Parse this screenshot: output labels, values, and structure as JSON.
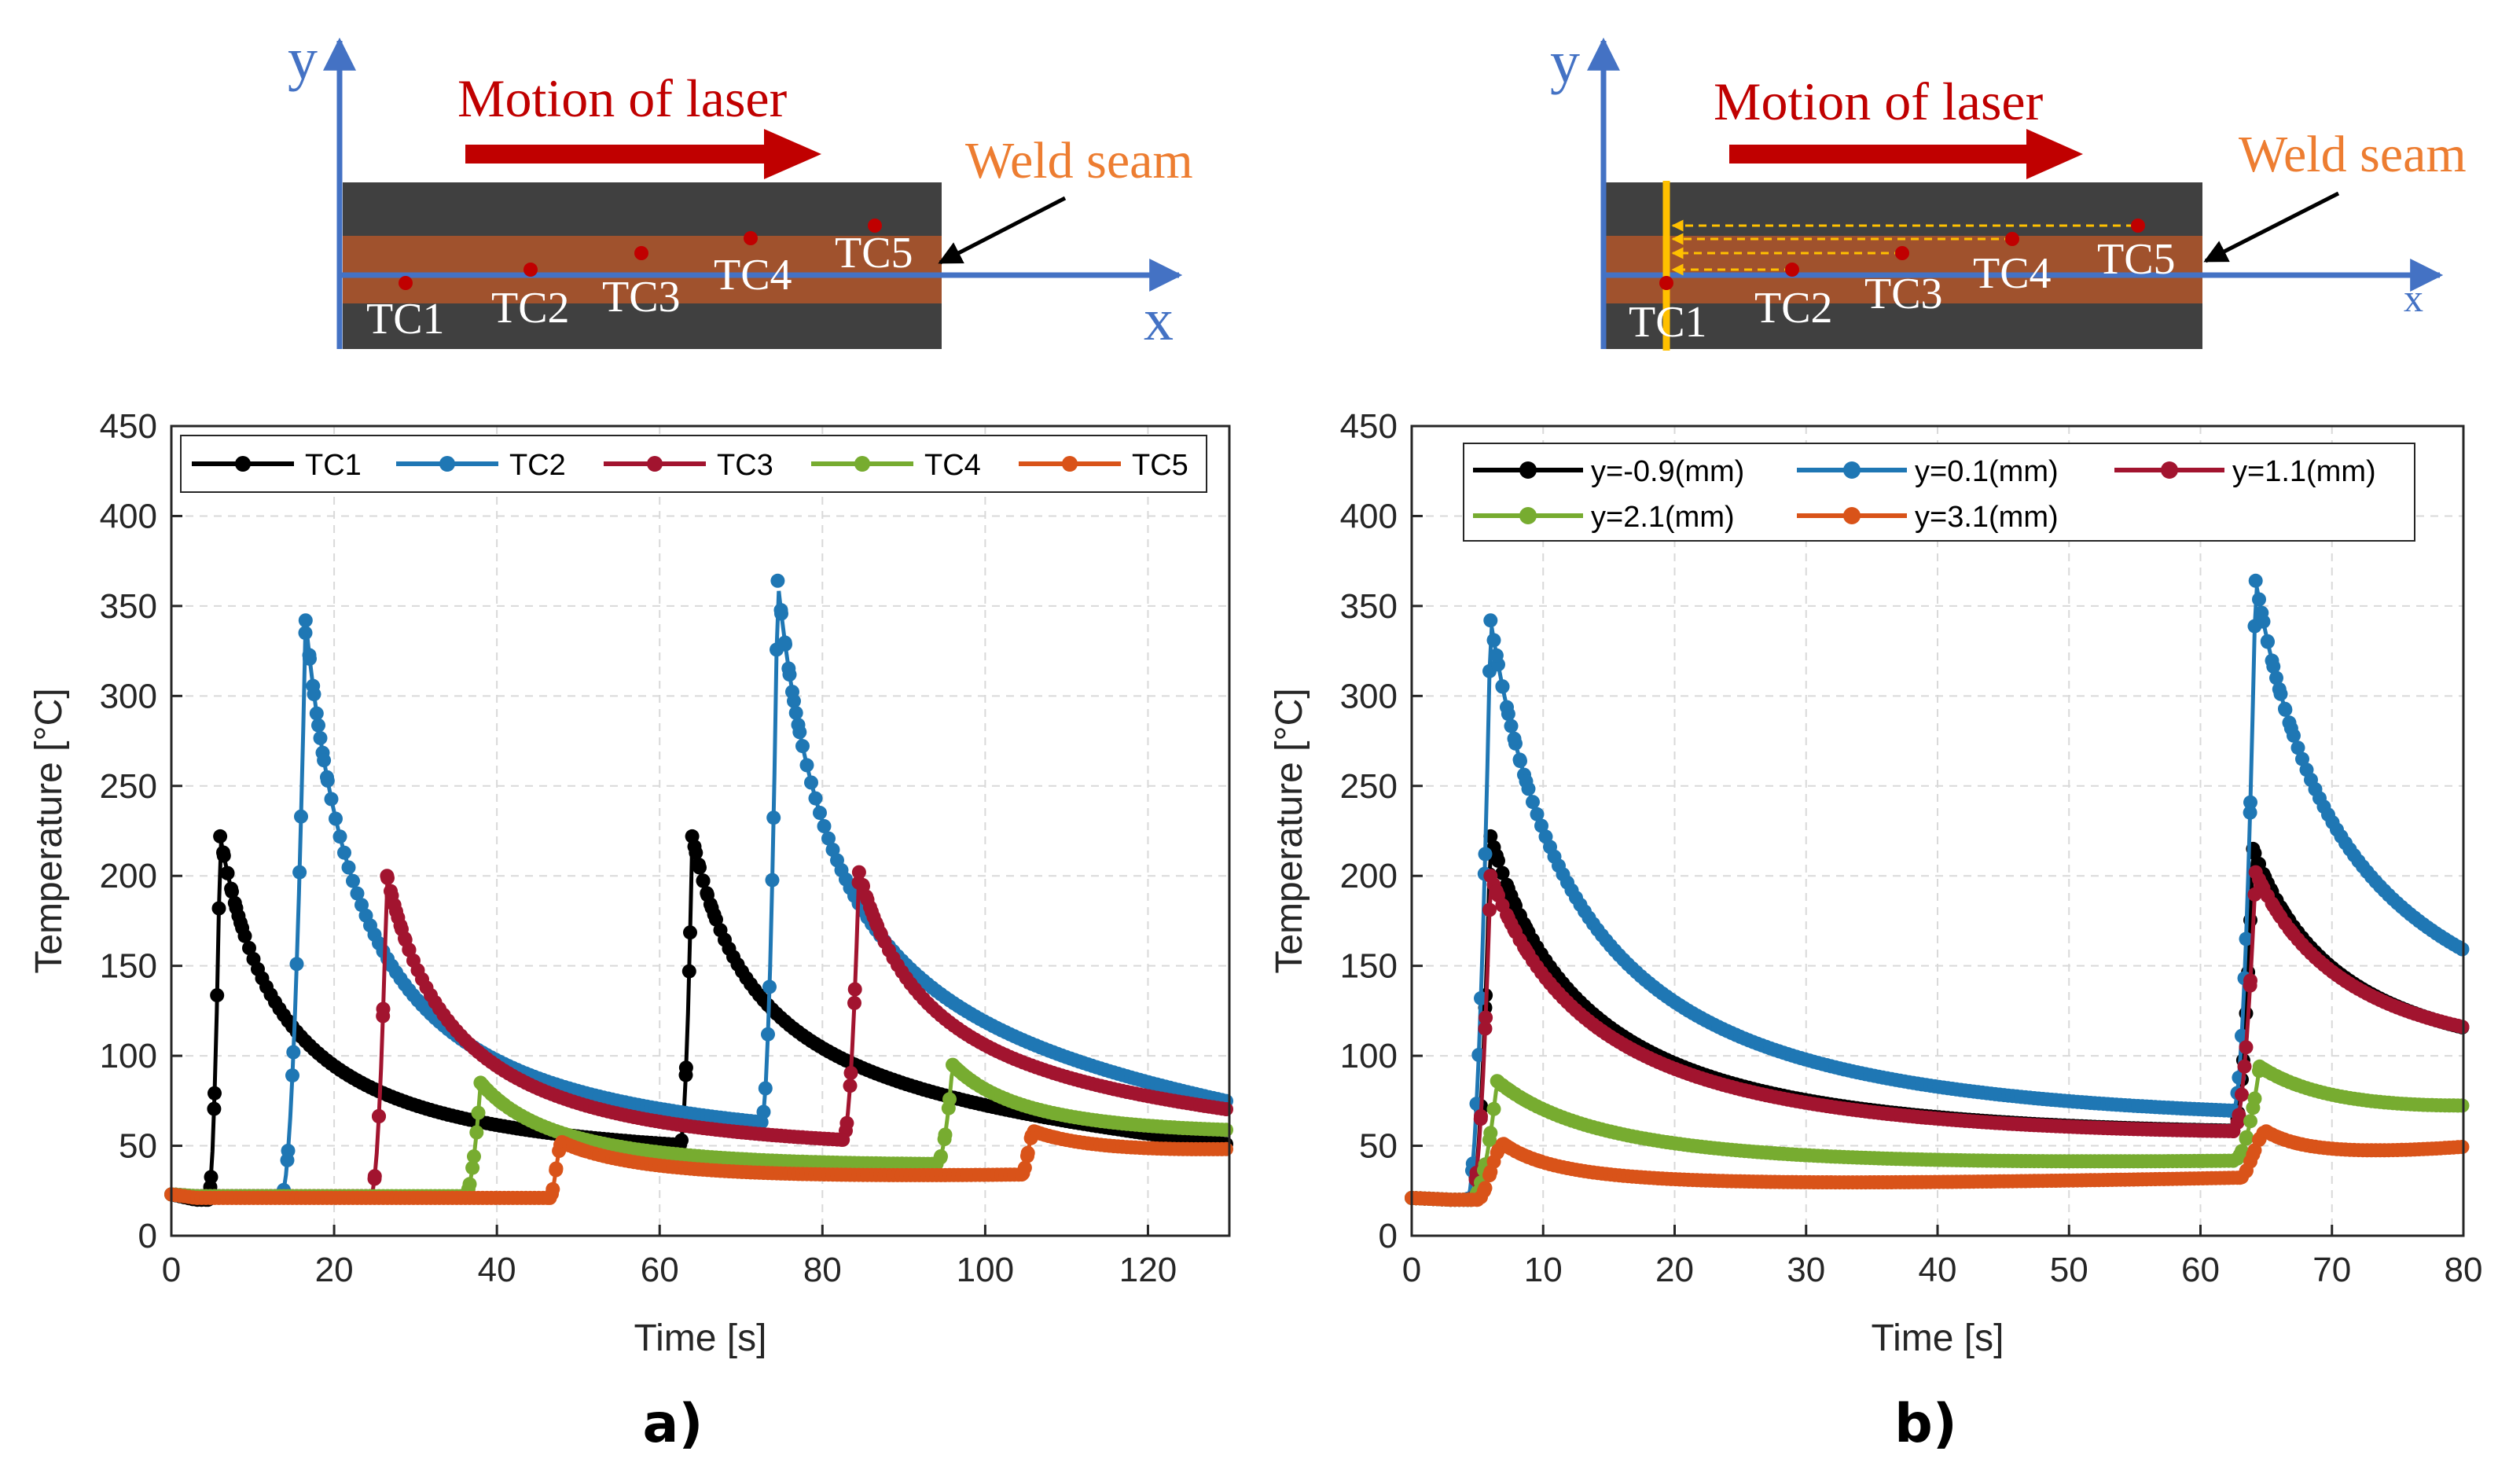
{
  "diagrams": [
    {
      "y_label": "y",
      "x_label": "x",
      "motion_label": "Motion of laser",
      "seam_label": "Weld seam",
      "tc_labels": [
        "TC1",
        "TC2",
        "TC3",
        "TC4",
        "TC5"
      ]
    },
    {
      "y_label": "y",
      "x_label": "x",
      "motion_label": "Motion of laser",
      "seam_label": "Weld seam",
      "tc_labels": [
        "TC1",
        "TC2",
        "TC3",
        "TC4",
        "TC5"
      ]
    }
  ],
  "panel_labels": [
    "a)",
    "b)"
  ],
  "colors": {
    "black": "#000000",
    "blue": "#1f77b4",
    "crimson": "#a2142f",
    "green": "#77ac30",
    "orange": "#d95319",
    "laser_arrow": "#c00000",
    "weld_text": "#ed7d31",
    "axis_blue": "#4472c4",
    "plate": "#404040",
    "seam": "#a0522d",
    "cut_line": "#ffc000"
  },
  "chart_data": [
    {
      "type": "line",
      "xlabel": "Time [s]",
      "ylabel": "Temperature [°C]",
      "xlim": [
        0,
        130
      ],
      "ylim": [
        0,
        450
      ],
      "xticks": [
        0,
        20,
        40,
        60,
        80,
        100,
        120
      ],
      "yticks": [
        0,
        50,
        100,
        150,
        200,
        250,
        300,
        350,
        400,
        450
      ],
      "grid": true,
      "legend": "top, single row",
      "series": [
        {
          "name": "TC1",
          "color": "#000000",
          "ambient": 23,
          "base": 20,
          "final": 30,
          "pulses": [
            {
              "t0": 4.5,
              "tp": 6,
              "peak": 222,
              "tau": 8,
              "kind": "sharp"
            },
            {
              "t0": 62.5,
              "tp": 64,
              "peak": 222,
              "tau": 8,
              "kind": "sharp"
            }
          ]
        },
        {
          "name": "TC2",
          "color": "#1f77b4",
          "ambient": 23,
          "base": 22,
          "final": 38,
          "pulses": [
            {
              "t0": 13.5,
              "tp": 16.5,
              "peak": 342,
              "tau": 7,
              "kind": "sharp"
            },
            {
              "t0": 72.5,
              "tp": 74.5,
              "peak": 364,
              "tau": 7,
              "kind": "sharp"
            }
          ]
        },
        {
          "name": "TC3",
          "color": "#a2142f",
          "ambient": 23,
          "base": 22,
          "final": 44,
          "pulses": [
            {
              "t0": 24.5,
              "tp": 26.5,
              "peak": 200,
              "tau": 9,
              "kind": "sharp"
            },
            {
              "t0": 82.5,
              "tp": 84.5,
              "peak": 202,
              "tau": 9,
              "kind": "sharp"
            }
          ]
        },
        {
          "name": "TC4",
          "color": "#77ac30",
          "ambient": 23,
          "base": 22,
          "final": 46,
          "pulses": [
            {
              "t0": 36,
              "tp": 38,
              "peak": 85,
              "tau": 12,
              "kind": "sharp"
            },
            {
              "t0": 94,
              "tp": 96,
              "peak": 95,
              "tau": 12,
              "kind": "sharp"
            }
          ]
        },
        {
          "name": "TC5",
          "color": "#d95319",
          "ambient": 23,
          "base": 21,
          "final": 42,
          "pulses": [
            {
              "t0": 46.5,
              "tp": 48,
              "peak": 52,
              "tau": 15,
              "kind": "smooth"
            },
            {
              "t0": 104.5,
              "tp": 106,
              "peak": 58,
              "tau": 15,
              "kind": "smooth"
            }
          ]
        }
      ]
    },
    {
      "type": "line",
      "xlabel": "Time [s]",
      "ylabel": "Temperature [°C]",
      "xlim": [
        0,
        80
      ],
      "ylim": [
        0,
        450
      ],
      "xticks": [
        0,
        10,
        20,
        30,
        40,
        50,
        60,
        70,
        80
      ],
      "yticks": [
        0,
        50,
        100,
        150,
        200,
        250,
        300,
        350,
        400,
        450
      ],
      "grid": true,
      "legend": "top-left, two rows",
      "series": [
        {
          "name": "y=-0.9(mm)",
          "color": "#000000",
          "ambient": 21,
          "base": 20,
          "final": 66,
          "pulses": [
            {
              "t0": 4.5,
              "tp": 6,
              "peak": 222,
              "tau": 8,
              "kind": "sharp"
            },
            {
              "t0": 62.5,
              "tp": 64,
              "peak": 215,
              "tau": 8,
              "kind": "sharp"
            }
          ]
        },
        {
          "name": "y=0.1(mm)",
          "color": "#1f77b4",
          "ambient": 21,
          "base": 20,
          "final": 68,
          "pulses": [
            {
              "t0": 4.2,
              "tp": 6,
              "peak": 342,
              "tau": 7,
              "kind": "sharp"
            },
            {
              "t0": 62.5,
              "tp": 64.2,
              "peak": 364,
              "tau": 7,
              "kind": "sharp"
            }
          ]
        },
        {
          "name": "y=1.1(mm)",
          "color": "#a2142f",
          "ambient": 21,
          "base": 20,
          "final": 67,
          "pulses": [
            {
              "t0": 4.5,
              "tp": 6,
              "peak": 200,
              "tau": 9,
              "kind": "sharp"
            },
            {
              "t0": 62.5,
              "tp": 64.2,
              "peak": 202,
              "tau": 9,
              "kind": "sharp"
            }
          ]
        },
        {
          "name": "y=2.1(mm)",
          "color": "#77ac30",
          "ambient": 21,
          "base": 20,
          "final": 57,
          "pulses": [
            {
              "t0": 4.5,
              "tp": 6.5,
              "peak": 86,
              "tau": 11,
              "kind": "sharp"
            },
            {
              "t0": 62.5,
              "tp": 64.5,
              "peak": 94,
              "tau": 11,
              "kind": "sharp"
            }
          ]
        },
        {
          "name": "y=3.1(mm)",
          "color": "#d95319",
          "ambient": 21,
          "base": 20,
          "final": 46,
          "pulses": [
            {
              "t0": 5,
              "tp": 7,
              "peak": 51,
              "tau": 6,
              "kind": "smooth"
            },
            {
              "t0": 63,
              "tp": 65,
              "peak": 58,
              "tau": 6,
              "kind": "smooth"
            }
          ]
        }
      ]
    }
  ]
}
